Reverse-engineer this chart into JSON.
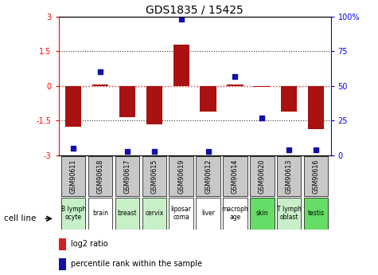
{
  "title": "GDS1835 / 15425",
  "samples": [
    "GSM90611",
    "GSM90618",
    "GSM90617",
    "GSM90615",
    "GSM90619",
    "GSM90612",
    "GSM90614",
    "GSM90620",
    "GSM90613",
    "GSM90616"
  ],
  "cell_lines": [
    "B lymph\nocyte",
    "brain",
    "breast",
    "cervix",
    "liposar\ncoma",
    "liver",
    "macroph\nage",
    "skin",
    "T lymph\noblast",
    "testis"
  ],
  "cell_line_colors": [
    "#c8f0c8",
    "#ffffff",
    "#c8f0c8",
    "#c8f0c8",
    "#ffffff",
    "#ffffff",
    "#ffffff",
    "#66dd66",
    "#c8f0c8",
    "#66dd66"
  ],
  "log2_ratio": [
    -1.75,
    0.05,
    -1.35,
    -1.65,
    1.8,
    -1.1,
    0.05,
    -0.05,
    -1.1,
    -1.85
  ],
  "percentile_rank": [
    5,
    60,
    3,
    3,
    98,
    3,
    57,
    27,
    4,
    4
  ],
  "ylim_left": [
    -3,
    3
  ],
  "ylim_right": [
    0,
    100
  ],
  "bar_color": "#aa1111",
  "dot_color": "#1111aa",
  "zero_line_color": "#dd2222",
  "dotted_line_color": "#333333",
  "sample_box_color": "#c8c8c8",
  "legend_log2_color": "#cc2222",
  "legend_pct_color": "#1111aa"
}
